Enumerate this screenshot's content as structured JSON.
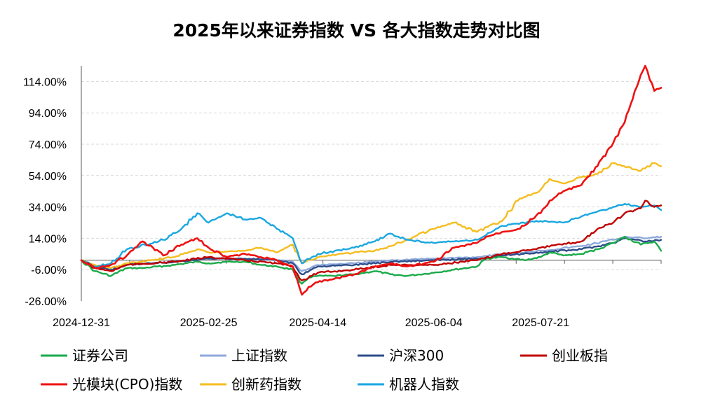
{
  "chart_data": {
    "type": "line",
    "title": "2025年以来证券指数 VS 各大指数走势对比图",
    "xlabel": "",
    "ylabel": "",
    "ylim": [
      -26,
      124
    ],
    "yticks": [
      -26,
      -6,
      14,
      34,
      54,
      74,
      94,
      114
    ],
    "y_tick_labels": [
      "-26.00%",
      "-6.00%",
      "14.00%",
      "34.00%",
      "54.00%",
      "74.00%",
      "94.00%",
      "114.00%"
    ],
    "x_range": [
      "2024-12-31",
      "2025-09-12"
    ],
    "x_tick_labels": [
      "2024-12-31",
      "2025-02-25",
      "2025-04-14",
      "2025-06-04",
      "2025-07-21"
    ],
    "grid": "horizontal dashed",
    "legend_position": "bottom",
    "series": [
      {
        "name": "证券公司",
        "color": "#1aaa4a",
        "points": [
          [
            "2024-12-31",
            0
          ],
          [
            "2025-01-06",
            -7
          ],
          [
            "2025-01-13",
            -10
          ],
          [
            "2025-01-20",
            -5
          ],
          [
            "2025-01-27",
            -5
          ],
          [
            "2025-02-10",
            -3
          ],
          [
            "2025-02-20",
            -1
          ],
          [
            "2025-02-25",
            -2
          ],
          [
            "2025-03-05",
            -1
          ],
          [
            "2025-03-13",
            -1
          ],
          [
            "2025-03-20",
            -3
          ],
          [
            "2025-03-27",
            -4
          ],
          [
            "2025-04-03",
            -6
          ],
          [
            "2025-04-07",
            -15
          ],
          [
            "2025-04-10",
            -11
          ],
          [
            "2025-04-14",
            -10
          ],
          [
            "2025-04-21",
            -10
          ],
          [
            "2025-04-30",
            -9
          ],
          [
            "2025-05-09",
            -7
          ],
          [
            "2025-05-16",
            -9
          ],
          [
            "2025-05-23",
            -10
          ],
          [
            "2025-06-04",
            -8
          ],
          [
            "2025-06-13",
            -6
          ],
          [
            "2025-06-23",
            -4
          ],
          [
            "2025-06-27",
            1
          ],
          [
            "2025-07-04",
            2
          ],
          [
            "2025-07-14",
            0
          ],
          [
            "2025-07-21",
            2
          ],
          [
            "2025-07-25",
            5
          ],
          [
            "2025-07-31",
            3
          ],
          [
            "2025-08-08",
            4
          ],
          [
            "2025-08-15",
            7
          ],
          [
            "2025-08-22",
            11
          ],
          [
            "2025-08-27",
            15
          ],
          [
            "2025-09-03",
            10
          ],
          [
            "2025-09-09",
            12
          ],
          [
            "2025-09-12",
            6
          ]
        ]
      },
      {
        "name": "上证指数",
        "color": "#8eaadb",
        "points": [
          [
            "2024-12-31",
            0
          ],
          [
            "2025-01-06",
            -4
          ],
          [
            "2025-01-13",
            -5
          ],
          [
            "2025-01-20",
            -3
          ],
          [
            "2025-02-10",
            -1
          ],
          [
            "2025-02-25",
            1
          ],
          [
            "2025-03-13",
            1
          ],
          [
            "2025-03-27",
            0
          ],
          [
            "2025-04-03",
            -1
          ],
          [
            "2025-04-07",
            -7
          ],
          [
            "2025-04-14",
            -3
          ],
          [
            "2025-04-30",
            -2
          ],
          [
            "2025-05-16",
            0
          ],
          [
            "2025-06-04",
            1
          ],
          [
            "2025-06-23",
            2
          ],
          [
            "2025-07-04",
            4
          ],
          [
            "2025-07-21",
            6
          ],
          [
            "2025-08-08",
            9
          ],
          [
            "2025-08-22",
            13
          ],
          [
            "2025-08-27",
            15
          ],
          [
            "2025-09-05",
            14
          ],
          [
            "2025-09-12",
            15
          ]
        ]
      },
      {
        "name": "沪深300",
        "color": "#2e4d8a",
        "points": [
          [
            "2024-12-31",
            0
          ],
          [
            "2025-01-06",
            -4
          ],
          [
            "2025-01-13",
            -6
          ],
          [
            "2025-01-20",
            -3
          ],
          [
            "2025-02-10",
            -1
          ],
          [
            "2025-02-25",
            1
          ],
          [
            "2025-03-13",
            1
          ],
          [
            "2025-03-27",
            0
          ],
          [
            "2025-04-03",
            -2
          ],
          [
            "2025-04-07",
            -9
          ],
          [
            "2025-04-14",
            -4
          ],
          [
            "2025-04-30",
            -3
          ],
          [
            "2025-05-16",
            -1
          ],
          [
            "2025-06-04",
            0
          ],
          [
            "2025-06-23",
            1
          ],
          [
            "2025-07-04",
            3
          ],
          [
            "2025-07-21",
            5
          ],
          [
            "2025-08-08",
            7
          ],
          [
            "2025-08-22",
            11
          ],
          [
            "2025-08-27",
            14
          ],
          [
            "2025-09-05",
            12
          ],
          [
            "2025-09-12",
            13
          ]
        ]
      },
      {
        "name": "创业板指",
        "color": "#c00000",
        "points": [
          [
            "2024-12-31",
            0
          ],
          [
            "2025-01-06",
            -5
          ],
          [
            "2025-01-13",
            -7
          ],
          [
            "2025-01-20",
            -3
          ],
          [
            "2025-02-10",
            -1
          ],
          [
            "2025-02-25",
            2
          ],
          [
            "2025-03-13",
            0
          ],
          [
            "2025-03-27",
            -2
          ],
          [
            "2025-04-03",
            -4
          ],
          [
            "2025-04-07",
            -13
          ],
          [
            "2025-04-14",
            -8
          ],
          [
            "2025-04-30",
            -6
          ],
          [
            "2025-05-16",
            -3
          ],
          [
            "2025-06-04",
            -3
          ],
          [
            "2025-06-23",
            0
          ],
          [
            "2025-07-04",
            4
          ],
          [
            "2025-07-21",
            8
          ],
          [
            "2025-08-08",
            12
          ],
          [
            "2025-08-15",
            20
          ],
          [
            "2025-08-22",
            24
          ],
          [
            "2025-08-27",
            30
          ],
          [
            "2025-09-03",
            33
          ],
          [
            "2025-09-05",
            38
          ],
          [
            "2025-09-09",
            34
          ],
          [
            "2025-09-12",
            35
          ]
        ]
      },
      {
        "name": "光模块(CPO)指数",
        "color": "#ee1111",
        "points": [
          [
            "2024-12-31",
            0
          ],
          [
            "2025-01-06",
            -5
          ],
          [
            "2025-01-13",
            -3
          ],
          [
            "2025-01-20",
            3
          ],
          [
            "2025-01-27",
            12
          ],
          [
            "2025-02-05",
            3
          ],
          [
            "2025-02-13",
            10
          ],
          [
            "2025-02-20",
            14
          ],
          [
            "2025-02-25",
            8
          ],
          [
            "2025-03-05",
            2
          ],
          [
            "2025-03-13",
            4
          ],
          [
            "2025-03-20",
            2
          ],
          [
            "2025-03-27",
            0
          ],
          [
            "2025-04-03",
            -4
          ],
          [
            "2025-04-07",
            -22
          ],
          [
            "2025-04-10",
            -17
          ],
          [
            "2025-04-14",
            -14
          ],
          [
            "2025-04-21",
            -12
          ],
          [
            "2025-04-30",
            -9
          ],
          [
            "2025-05-09",
            -4
          ],
          [
            "2025-05-16",
            -2
          ],
          [
            "2025-05-23",
            -4
          ],
          [
            "2025-06-04",
            -1
          ],
          [
            "2025-06-13",
            8
          ],
          [
            "2025-06-23",
            11
          ],
          [
            "2025-06-27",
            15
          ],
          [
            "2025-07-04",
            18
          ],
          [
            "2025-07-11",
            20
          ],
          [
            "2025-07-21",
            30
          ],
          [
            "2025-07-25",
            38
          ],
          [
            "2025-07-31",
            44
          ],
          [
            "2025-08-08",
            48
          ],
          [
            "2025-08-15",
            60
          ],
          [
            "2025-08-22",
            75
          ],
          [
            "2025-08-27",
            88
          ],
          [
            "2025-09-03",
            118
          ],
          [
            "2025-09-05",
            124
          ],
          [
            "2025-09-09",
            108
          ],
          [
            "2025-09-12",
            110
          ]
        ]
      },
      {
        "name": "创新药指数",
        "color": "#f5bd1f",
        "points": [
          [
            "2024-12-31",
            0
          ],
          [
            "2025-01-06",
            -3
          ],
          [
            "2025-01-13",
            -5
          ],
          [
            "2025-01-20",
            -2
          ],
          [
            "2025-02-10",
            2
          ],
          [
            "2025-02-20",
            7
          ],
          [
            "2025-02-25",
            5
          ],
          [
            "2025-03-13",
            6
          ],
          [
            "2025-03-20",
            8
          ],
          [
            "2025-03-27",
            5
          ],
          [
            "2025-04-03",
            10
          ],
          [
            "2025-04-07",
            -2
          ],
          [
            "2025-04-14",
            2
          ],
          [
            "2025-04-30",
            5
          ],
          [
            "2025-05-09",
            6
          ],
          [
            "2025-05-16",
            9
          ],
          [
            "2025-05-23",
            13
          ],
          [
            "2025-06-04",
            20
          ],
          [
            "2025-06-13",
            24
          ],
          [
            "2025-06-23",
            18
          ],
          [
            "2025-07-04",
            25
          ],
          [
            "2025-07-11",
            38
          ],
          [
            "2025-07-21",
            45
          ],
          [
            "2025-07-25",
            52
          ],
          [
            "2025-07-31",
            49
          ],
          [
            "2025-08-08",
            53
          ],
          [
            "2025-08-15",
            55
          ],
          [
            "2025-08-22",
            62
          ],
          [
            "2025-09-03",
            57
          ],
          [
            "2025-09-09",
            62
          ],
          [
            "2025-09-12",
            60
          ]
        ]
      },
      {
        "name": "机器人指数",
        "color": "#1aa7e0",
        "points": [
          [
            "2024-12-31",
            0
          ],
          [
            "2025-01-06",
            -4
          ],
          [
            "2025-01-13",
            -2
          ],
          [
            "2025-01-20",
            7
          ],
          [
            "2025-02-05",
            13
          ],
          [
            "2025-02-13",
            20
          ],
          [
            "2025-02-20",
            30
          ],
          [
            "2025-02-25",
            24
          ],
          [
            "2025-03-05",
            30
          ],
          [
            "2025-03-13",
            26
          ],
          [
            "2025-03-20",
            27
          ],
          [
            "2025-03-27",
            20
          ],
          [
            "2025-04-03",
            14
          ],
          [
            "2025-04-07",
            -2
          ],
          [
            "2025-04-14",
            4
          ],
          [
            "2025-04-30",
            8
          ],
          [
            "2025-05-09",
            12
          ],
          [
            "2025-05-16",
            17
          ],
          [
            "2025-05-23",
            13
          ],
          [
            "2025-06-04",
            11
          ],
          [
            "2025-06-13",
            12
          ],
          [
            "2025-06-23",
            13
          ],
          [
            "2025-06-27",
            16
          ],
          [
            "2025-07-04",
            22
          ],
          [
            "2025-07-21",
            25
          ],
          [
            "2025-07-31",
            24
          ],
          [
            "2025-08-08",
            28
          ],
          [
            "2025-08-15",
            31
          ],
          [
            "2025-08-22",
            34
          ],
          [
            "2025-08-27",
            36
          ],
          [
            "2025-09-03",
            34
          ],
          [
            "2025-09-09",
            35
          ],
          [
            "2025-09-12",
            32
          ]
        ]
      }
    ]
  }
}
